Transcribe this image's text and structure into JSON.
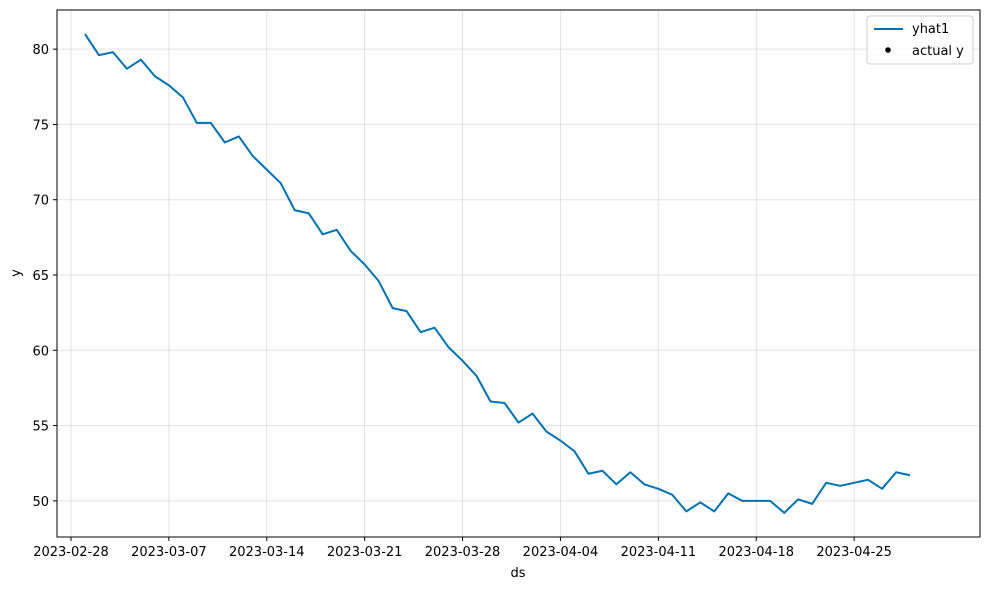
{
  "chart_data": {
    "type": "line",
    "xlabel": "ds",
    "ylabel": "y",
    "x_tick_labels": [
      "2023-02-28",
      "2023-03-07",
      "2023-03-14",
      "2023-03-21",
      "2023-03-28",
      "2023-04-04",
      "2023-04-11",
      "2023-04-18",
      "2023-04-25"
    ],
    "y_tick_labels": [
      "50",
      "55",
      "60",
      "65",
      "70",
      "75",
      "80"
    ],
    "x_start_date": "2023-03-01",
    "xlim": [
      "2023-02-27",
      "2023-05-04"
    ],
    "ylim": [
      47.6,
      82.6
    ],
    "grid": true,
    "legend": {
      "position": "top-right",
      "entries": [
        {
          "label": "yhat1",
          "marker": "line",
          "color": "#0072B2"
        },
        {
          "label": "actual y",
          "marker": "dot",
          "color": "#000000"
        }
      ]
    },
    "series": [
      {
        "name": "yhat1",
        "color": "#0072B2",
        "start_date": "2023-03-01",
        "step_days": 1,
        "values": [
          81.0,
          79.6,
          79.8,
          78.7,
          79.3,
          78.2,
          77.6,
          76.8,
          75.1,
          75.1,
          73.8,
          74.2,
          72.9,
          72.0,
          71.1,
          69.3,
          69.1,
          67.7,
          68.0,
          66.6,
          65.7,
          64.6,
          62.8,
          62.6,
          61.2,
          61.5,
          60.2,
          59.3,
          58.3,
          56.6,
          56.5,
          55.2,
          55.8,
          54.6,
          54.0,
          53.3,
          51.8,
          52.0,
          51.1,
          51.9,
          51.1,
          50.8,
          50.4,
          49.3,
          49.9,
          49.3,
          50.5,
          50.0,
          50.0,
          50.0,
          49.2,
          50.1,
          49.8,
          51.2,
          51.0,
          51.2,
          51.4,
          50.8,
          51.9,
          51.7
        ]
      }
    ]
  }
}
